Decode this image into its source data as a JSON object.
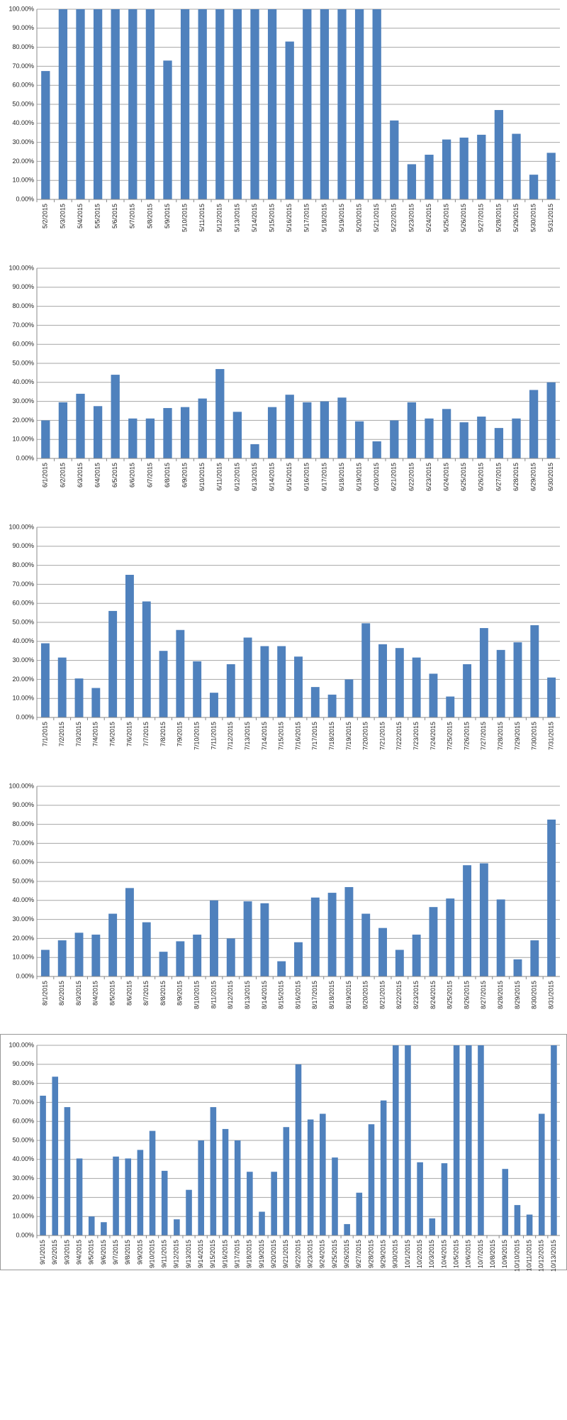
{
  "chart_data": [
    {
      "type": "bar",
      "color": "#4f81bd",
      "grid": true,
      "ylim": [
        0,
        100
      ],
      "yticks": [
        {
          "value": 0,
          "label": "0.00%"
        },
        {
          "value": 10,
          "label": "10.00%"
        },
        {
          "value": 20,
          "label": "20.00%"
        },
        {
          "value": 30,
          "label": "30.00%"
        },
        {
          "value": 40,
          "label": "40.00%"
        },
        {
          "value": 50,
          "label": "50.00%"
        },
        {
          "value": 60,
          "label": "60.00%"
        },
        {
          "value": 70,
          "label": "70.00%"
        },
        {
          "value": 80,
          "label": "80.00%"
        },
        {
          "value": 90,
          "label": "90.00%"
        },
        {
          "value": 100,
          "label": "100.00%"
        }
      ],
      "categories": [
        "5/2/2015",
        "5/3/2015",
        "5/4/2015",
        "5/5/2015",
        "5/6/2015",
        "5/7/2015",
        "5/8/2015",
        "5/9/2015",
        "5/10/2015",
        "5/11/2015",
        "5/12/2015",
        "5/13/2015",
        "5/14/2015",
        "5/15/2015",
        "5/16/2015",
        "5/17/2015",
        "5/18/2015",
        "5/19/2015",
        "5/20/2015",
        "5/21/2015",
        "5/22/2015",
        "5/23/2015",
        "5/24/2015",
        "5/25/2015",
        "5/26/2015",
        "5/27/2015",
        "5/28/2015",
        "5/29/2015",
        "5/30/2015",
        "5/31/2015"
      ],
      "values": [
        67.5,
        100,
        100,
        100,
        100,
        100,
        100,
        73,
        100,
        100,
        100,
        100,
        100,
        100,
        83,
        100,
        100,
        100,
        100,
        100,
        41.5,
        18.5,
        23.5,
        31.5,
        32.5,
        34,
        47,
        34.5,
        13,
        24.5
      ]
    },
    {
      "type": "bar",
      "color": "#4f81bd",
      "grid": true,
      "ylim": [
        0,
        100
      ],
      "yticks": [
        {
          "value": 0,
          "label": "0.00%"
        },
        {
          "value": 10,
          "label": "10.00%"
        },
        {
          "value": 20,
          "label": "20.00%"
        },
        {
          "value": 30,
          "label": "30.00%"
        },
        {
          "value": 40,
          "label": "40.00%"
        },
        {
          "value": 50,
          "label": "50.00%"
        },
        {
          "value": 60,
          "label": "60.00%"
        },
        {
          "value": 70,
          "label": "70.00%"
        },
        {
          "value": 80,
          "label": "80.00%"
        },
        {
          "value": 90,
          "label": "90.00%"
        },
        {
          "value": 100,
          "label": "100.00%"
        }
      ],
      "categories": [
        "6/1/2015",
        "6/2/2015",
        "6/3/2015",
        "6/4/2015",
        "6/5/2015",
        "6/6/2015",
        "6/7/2015",
        "6/8/2015",
        "6/9/2015",
        "6/10/2015",
        "6/11/2015",
        "6/12/2015",
        "6/13/2015",
        "6/14/2015",
        "6/15/2015",
        "6/16/2015",
        "6/17/2015",
        "6/18/2015",
        "6/19/2015",
        "6/20/2015",
        "6/21/2015",
        "6/22/2015",
        "6/23/2015",
        "6/24/2015",
        "6/25/2015",
        "6/26/2015",
        "6/27/2015",
        "6/28/2015",
        "6/29/2015",
        "6/30/2015"
      ],
      "values": [
        20,
        29.5,
        34,
        27.5,
        44,
        21,
        21,
        26.5,
        27,
        31.5,
        47,
        24.5,
        7.5,
        27,
        33.5,
        29.5,
        30,
        32,
        19.5,
        9,
        20,
        29.5,
        21,
        26,
        19,
        22,
        16,
        21,
        36,
        40
      ]
    },
    {
      "type": "bar",
      "color": "#4f81bd",
      "grid": true,
      "ylim": [
        0,
        100
      ],
      "yticks": [
        {
          "value": 0,
          "label": "0.00%"
        },
        {
          "value": 10,
          "label": "10.00%"
        },
        {
          "value": 20,
          "label": "20.00%"
        },
        {
          "value": 30,
          "label": "30.00%"
        },
        {
          "value": 40,
          "label": "40.00%"
        },
        {
          "value": 50,
          "label": "50.00%"
        },
        {
          "value": 60,
          "label": "60.00%"
        },
        {
          "value": 70,
          "label": "70.00%"
        },
        {
          "value": 80,
          "label": "80.00%"
        },
        {
          "value": 90,
          "label": "90.00%"
        },
        {
          "value": 100,
          "label": "100.00%"
        }
      ],
      "categories": [
        "7/1/2015",
        "7/2/2015",
        "7/3/2015",
        "7/4/2015",
        "7/5/2015",
        "7/6/2015",
        "7/7/2015",
        "7/8/2015",
        "7/9/2015",
        "7/10/2015",
        "7/11/2015",
        "7/12/2015",
        "7/13/2015",
        "7/14/2015",
        "7/15/2015",
        "7/16/2015",
        "7/17/2015",
        "7/18/2015",
        "7/19/2015",
        "7/20/2015",
        "7/21/2015",
        "7/22/2015",
        "7/23/2015",
        "7/24/2015",
        "7/25/2015",
        "7/26/2015",
        "7/27/2015",
        "7/28/2015",
        "7/29/2015",
        "7/30/2015",
        "7/31/2015"
      ],
      "values": [
        39,
        31.5,
        20.5,
        15.5,
        56,
        75,
        61,
        35,
        46,
        29.5,
        13,
        28,
        42,
        37.5,
        37.5,
        32,
        16,
        12,
        20,
        49.5,
        38.5,
        36.5,
        31.5,
        23,
        11,
        28,
        47,
        35.5,
        39.5,
        48.5,
        21
      ]
    },
    {
      "type": "bar",
      "color": "#4f81bd",
      "grid": true,
      "ylim": [
        0,
        100
      ],
      "yticks": [
        {
          "value": 0,
          "label": "0.00%"
        },
        {
          "value": 10,
          "label": "10.00%"
        },
        {
          "value": 20,
          "label": "20.00%"
        },
        {
          "value": 30,
          "label": "30.00%"
        },
        {
          "value": 40,
          "label": "40.00%"
        },
        {
          "value": 50,
          "label": "50.00%"
        },
        {
          "value": 60,
          "label": "60.00%"
        },
        {
          "value": 70,
          "label": "70.00%"
        },
        {
          "value": 80,
          "label": "80.00%"
        },
        {
          "value": 90,
          "label": "90.00%"
        },
        {
          "value": 100,
          "label": "100.00%"
        }
      ],
      "categories": [
        "8/1/2015",
        "8/2/2015",
        "8/3/2015",
        "8/4/2015",
        "8/5/2015",
        "8/6/2015",
        "8/7/2015",
        "8/8/2015",
        "8/9/2015",
        "8/10/2015",
        "8/11/2015",
        "8/12/2015",
        "8/13/2015",
        "8/14/2015",
        "8/15/2015",
        "8/16/2015",
        "8/17/2015",
        "8/18/2015",
        "8/19/2015",
        "8/20/2015",
        "8/21/2015",
        "8/22/2015",
        "8/23/2015",
        "8/24/2015",
        "8/25/2015",
        "8/26/2015",
        "8/27/2015",
        "8/28/2015",
        "8/29/2015",
        "8/30/2015",
        "8/31/2015"
      ],
      "values": [
        14,
        19,
        23,
        22,
        33,
        46.5,
        28.5,
        13,
        18.5,
        22,
        40,
        20,
        39.5,
        38.5,
        8,
        18,
        41.5,
        44,
        47,
        33,
        25.5,
        14,
        22,
        36.5,
        41,
        58.5,
        59.5,
        40.5,
        9,
        19,
        82.5
      ]
    },
    {
      "type": "bar",
      "color": "#4f81bd",
      "grid": true,
      "ylim": [
        0,
        100
      ],
      "yticks": [
        {
          "value": 0,
          "label": "0.00%"
        },
        {
          "value": 10,
          "label": "10.00%"
        },
        {
          "value": 20,
          "label": "20.00%"
        },
        {
          "value": 30,
          "label": "30.00%"
        },
        {
          "value": 40,
          "label": "40.00%"
        },
        {
          "value": 50,
          "label": "50.00%"
        },
        {
          "value": 60,
          "label": "60.00%"
        },
        {
          "value": 70,
          "label": "70.00%"
        },
        {
          "value": 80,
          "label": "80.00%"
        },
        {
          "value": 90,
          "label": "90.00%"
        },
        {
          "value": 100,
          "label": "100.00%"
        }
      ],
      "categories": [
        "9/1/2015",
        "9/2/2015",
        "9/3/2015",
        "9/4/2015",
        "9/5/2015",
        "9/6/2015",
        "9/7/2015",
        "9/8/2015",
        "9/9/2015",
        "9/10/2015",
        "9/11/2015",
        "9/12/2015",
        "9/13/2015",
        "9/14/2015",
        "9/15/2015",
        "9/16/2015",
        "9/17/2015",
        "9/18/2015",
        "9/19/2015",
        "9/20/2015",
        "9/21/2015",
        "9/22/2015",
        "9/23/2015",
        "9/24/2015",
        "9/25/2015",
        "9/26/2015",
        "9/27/2015",
        "9/28/2015",
        "9/29/2015",
        "9/30/2015",
        "10/1/2015",
        "10/2/2015",
        "10/3/2015",
        "10/4/2015",
        "10/5/2015",
        "10/6/2015",
        "10/7/2015",
        "10/8/2015",
        "10/9/2015",
        "10/10/2015",
        "10/11/2015",
        "10/12/2015",
        "10/13/2015"
      ],
      "values": [
        73.5,
        83.5,
        67.5,
        40.5,
        10,
        7,
        41.5,
        40.5,
        45,
        55,
        34,
        8.5,
        24,
        50,
        67.5,
        56,
        50,
        33.5,
        12.5,
        33.5,
        57,
        90,
        61,
        64,
        41,
        6,
        22.5,
        58.5,
        71,
        100,
        100,
        38.5,
        9,
        38,
        100,
        100,
        100,
        0,
        35,
        16,
        11,
        64,
        100
      ]
    }
  ]
}
